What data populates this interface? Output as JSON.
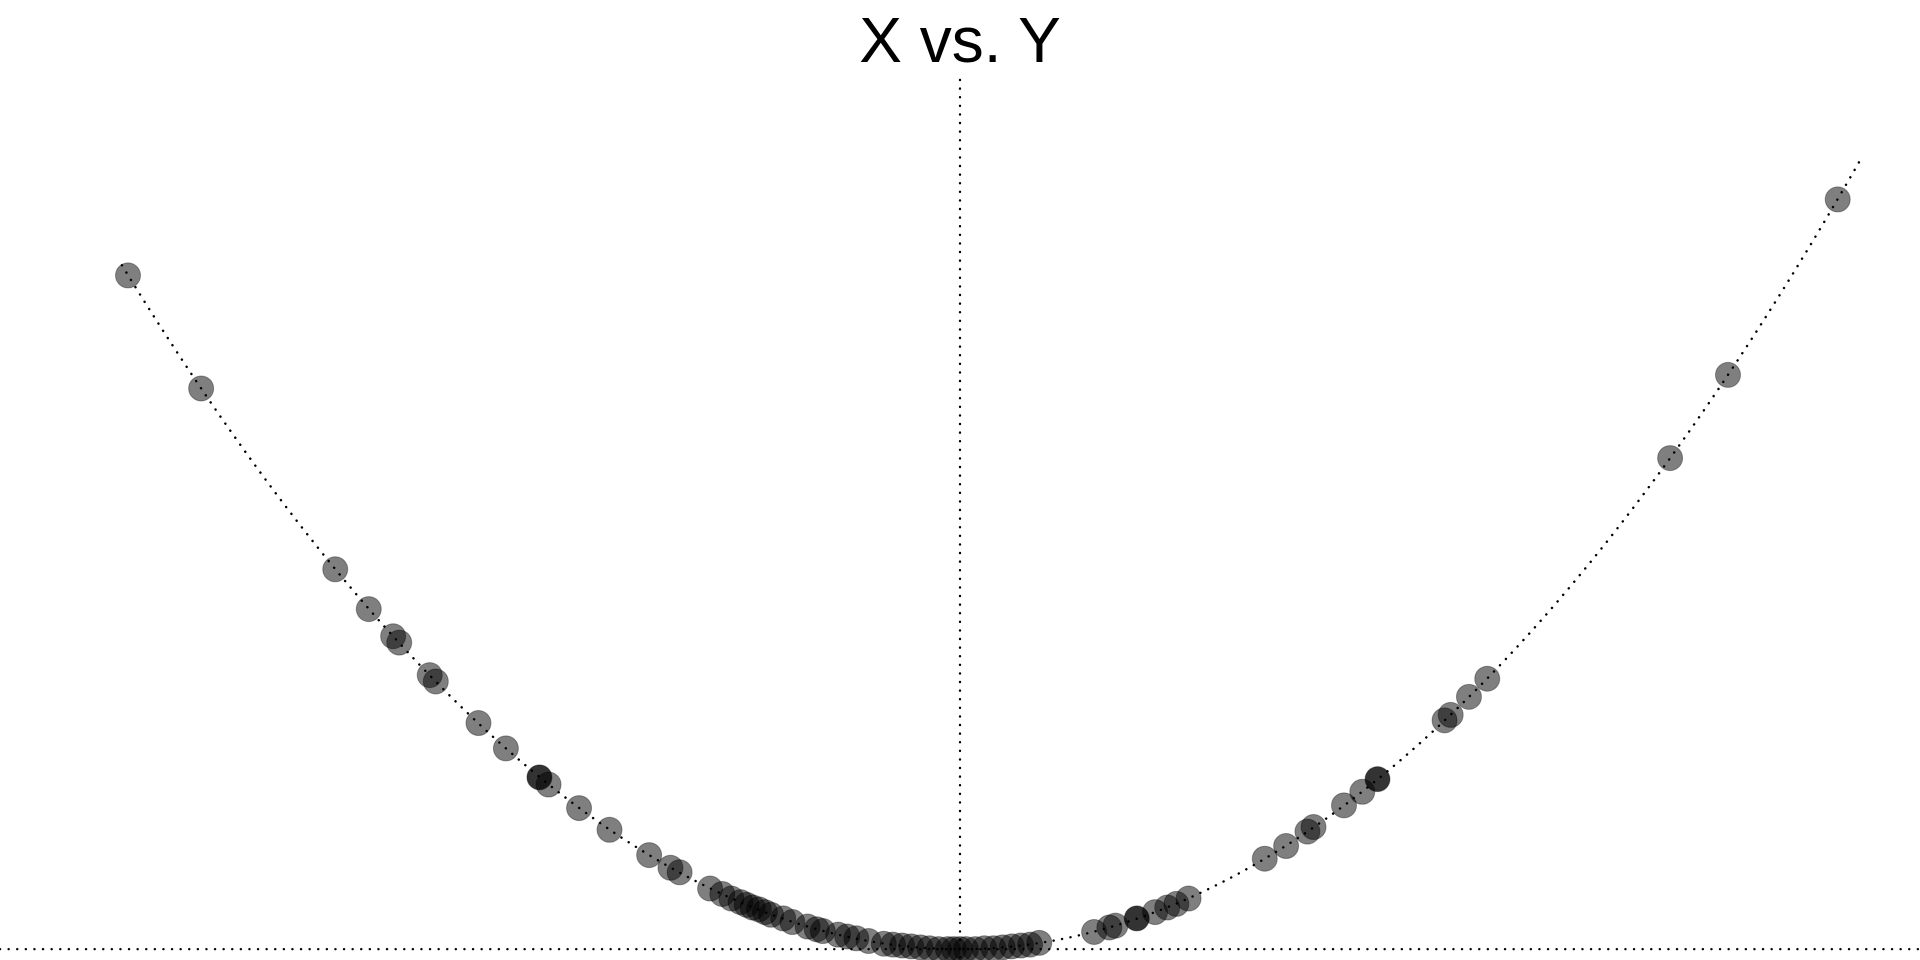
{
  "chart_data": {
    "type": "scatter",
    "title": "X vs. Y",
    "xlabel": "",
    "ylabel": "",
    "xlim": [
      -3.15,
      3.15
    ],
    "ylim": [
      -0.12,
      9.5
    ],
    "grid": false,
    "legend": "none",
    "curve": "y = x^2",
    "reference_lines": {
      "x": 0,
      "y": 0
    },
    "colors": {
      "point": "#000000",
      "point_opacity": 0.5,
      "line": "#000000",
      "background": "#ffffff"
    },
    "series": [
      {
        "x": [
          -2.73,
          -2.49,
          -2.05,
          -1.94,
          -1.86,
          -1.84,
          -1.74,
          -1.72,
          -1.58,
          -1.49,
          -1.38,
          -1.35,
          -1.25,
          -1.15,
          -1.02,
          -0.95,
          -0.92,
          -0.82,
          -0.78,
          -0.75,
          -0.72,
          -0.7,
          -0.68,
          -0.66,
          -0.64,
          -0.62,
          -0.58,
          -0.55,
          -0.5,
          -0.47,
          -0.45,
          -0.4,
          -0.37,
          -0.34,
          -0.3,
          -0.25,
          -0.22,
          -0.19,
          -0.16,
          -0.13,
          -0.1,
          -0.07,
          -0.04,
          -0.02,
          0.0,
          0.02,
          0.05,
          0.08,
          0.11,
          0.14,
          0.17,
          0.2,
          0.23,
          0.26,
          0.44,
          0.49,
          0.51,
          0.58,
          0.64,
          0.68,
          0.71,
          0.75,
          1.0,
          1.07,
          1.14,
          1.16,
          1.26,
          1.32,
          1.37,
          1.59,
          1.61,
          1.67,
          1.73,
          2.33,
          2.52,
          2.88
        ],
        "y": [
          7.45,
          6.2,
          4.2,
          3.76,
          3.46,
          3.39,
          3.03,
          2.96,
          2.5,
          2.22,
          1.9,
          1.82,
          1.56,
          1.32,
          1.04,
          0.9,
          0.85,
          0.67,
          0.61,
          0.56,
          0.52,
          0.49,
          0.46,
          0.44,
          0.41,
          0.38,
          0.34,
          0.3,
          0.25,
          0.22,
          0.2,
          0.16,
          0.14,
          0.12,
          0.09,
          0.06,
          0.05,
          0.04,
          0.03,
          0.02,
          0.01,
          0.0,
          0.0,
          0.0,
          0.0,
          0.0,
          0.0,
          0.01,
          0.01,
          0.02,
          0.03,
          0.04,
          0.05,
          0.07,
          0.19,
          0.24,
          0.26,
          0.34,
          0.41,
          0.46,
          0.5,
          0.56,
          1.0,
          1.14,
          1.3,
          1.35,
          1.59,
          1.74,
          1.88,
          2.53,
          2.59,
          2.79,
          2.99,
          5.43,
          6.35,
          8.29
        ]
      }
    ],
    "darker_points_x": [
      -1.38,
      0.58,
      1.37
    ]
  }
}
